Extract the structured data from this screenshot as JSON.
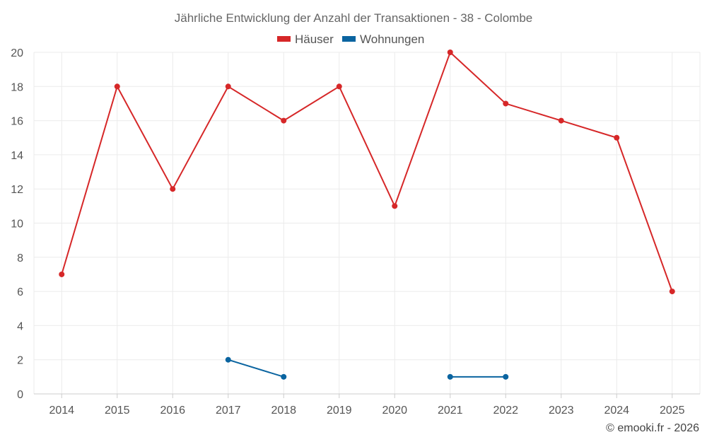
{
  "chart_data": {
    "type": "line",
    "title": "Jährliche Entwicklung der Anzahl der Transaktionen - 38 - Colombe",
    "xlabel": "",
    "ylabel": "",
    "categories": [
      "2014",
      "2015",
      "2016",
      "2017",
      "2018",
      "2019",
      "2020",
      "2021",
      "2022",
      "2023",
      "2024",
      "2025"
    ],
    "ylim": [
      0,
      20
    ],
    "yticks": [
      0,
      2,
      4,
      6,
      8,
      10,
      12,
      14,
      16,
      18,
      20
    ],
    "grid": true,
    "legend_position": "top-center",
    "series": [
      {
        "name": "Häuser",
        "color": "#d62728",
        "values": [
          7,
          18,
          12,
          18,
          16,
          18,
          11,
          20,
          17,
          16,
          15,
          6
        ]
      },
      {
        "name": "Wohnungen",
        "color": "#0a64a0",
        "values": [
          null,
          null,
          null,
          2,
          1,
          null,
          null,
          1,
          1,
          null,
          null,
          null
        ]
      }
    ]
  },
  "credit": "© emooki.fr - 2026"
}
